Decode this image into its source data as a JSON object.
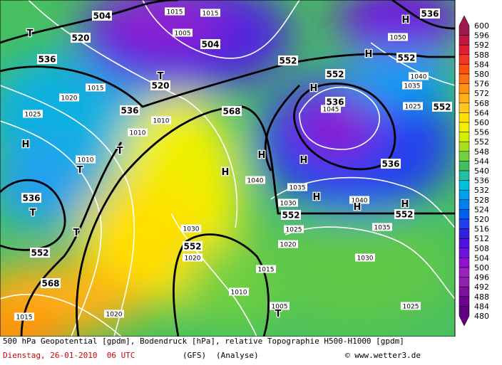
{
  "map": {
    "labels": [
      "504",
      "520",
      "536",
      "536",
      "552",
      "552",
      "568",
      "552",
      "536",
      "552",
      "536",
      "536",
      "552",
      "552",
      "536",
      "552",
      "568",
      "552",
      "520",
      "504",
      "1015",
      "1015",
      "1005",
      "1010",
      "1010",
      "1010",
      "1025",
      "1020",
      "1015",
      "1045",
      "1040",
      "1035",
      "1030",
      "1040",
      "1035",
      "1030",
      "1025",
      "1020",
      "1030",
      "1015",
      "1020",
      "1010",
      "1005",
      "1025",
      "1020",
      "1015",
      "1035",
      "1040",
      "1050",
      "1025"
    ],
    "highs_lows": [
      "H",
      "H",
      "H",
      "H",
      "H",
      "H",
      "H",
      "H",
      "H",
      "H",
      "T",
      "T",
      "T",
      "T",
      "T",
      "T",
      "T"
    ]
  },
  "colorbar": {
    "levels": [
      600,
      596,
      592,
      588,
      584,
      580,
      576,
      572,
      568,
      564,
      560,
      556,
      552,
      548,
      544,
      540,
      536,
      532,
      528,
      524,
      520,
      516,
      512,
      508,
      504,
      500,
      496,
      492,
      488,
      484,
      480
    ],
    "colors": [
      "#a01850",
      "#c01840",
      "#e02030",
      "#f03820",
      "#ff5010",
      "#ff7010",
      "#ff9010",
      "#ffb018",
      "#ffc820",
      "#ffe000",
      "#f0f000",
      "#d0f000",
      "#a8e020",
      "#70d040",
      "#40c060",
      "#20c0a0",
      "#00c0e0",
      "#00a0f0",
      "#0080f0",
      "#0060f0",
      "#2040f0",
      "#3020e0",
      "#5010e0",
      "#7010e0",
      "#9010d0",
      "#a020c0",
      "#9020b0",
      "#8010a0",
      "#700090",
      "#600080"
    ]
  },
  "footer": {
    "description": "500 hPa Geopotential [gpdm], Bodendruck [hPa], relative Topographie H500-H1000 [gpdm]",
    "date": "Dienstag, 26-01-2010  06 UTC",
    "model": "(GFS)",
    "run": "(Analyse)",
    "credit": "© www.wetter3.de"
  }
}
